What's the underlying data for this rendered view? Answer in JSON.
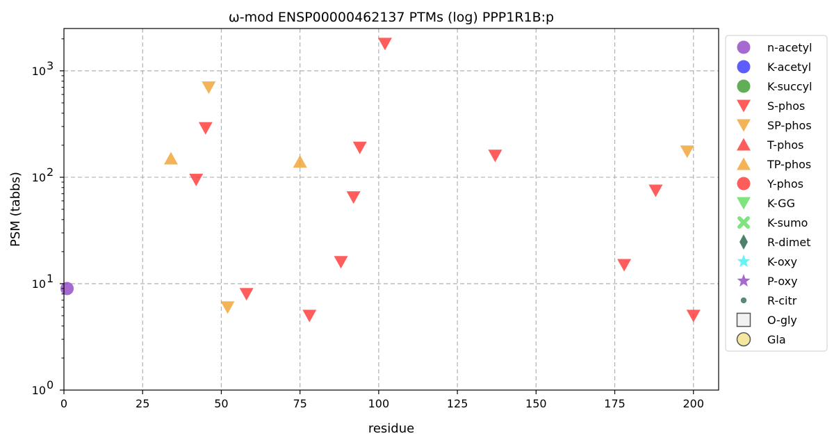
{
  "chart_data": {
    "type": "scatter",
    "title": "ω-mod ENSP00000462137 PTMs (log) PPP1R1B:p",
    "xlabel": "residue",
    "ylabel": "PSM (tabbs)",
    "xlim": [
      0,
      208
    ],
    "ylim": [
      1,
      2500
    ],
    "y_scale": "log",
    "grid": true,
    "legend_position": "right, outside plot",
    "x_ticks": [
      0,
      25,
      50,
      75,
      100,
      125,
      150,
      175,
      200
    ],
    "y_ticks": [
      {
        "value": 1,
        "base": "10",
        "exp": "0"
      },
      {
        "value": 10,
        "base": "10",
        "exp": "1"
      },
      {
        "value": 100,
        "base": "10",
        "exp": "2"
      },
      {
        "value": 1000,
        "base": "10",
        "exp": "3"
      }
    ],
    "series": [
      {
        "name": "n-acetyl",
        "marker": "circle",
        "color": "#8e44c4",
        "points": [
          {
            "x": 1,
            "y": 9
          }
        ]
      },
      {
        "name": "K-acetyl",
        "marker": "circle",
        "color": "#3333ff",
        "points": []
      },
      {
        "name": "K-succyl",
        "marker": "circle",
        "color": "#3a9a2e",
        "points": []
      },
      {
        "name": "S-phos",
        "marker": "triangle-down",
        "color": "#ff3333",
        "points": [
          {
            "x": 42,
            "y": 95
          },
          {
            "x": 45,
            "y": 290
          },
          {
            "x": 58,
            "y": 8
          },
          {
            "x": 78,
            "y": 5
          },
          {
            "x": 88,
            "y": 16
          },
          {
            "x": 92,
            "y": 65
          },
          {
            "x": 94,
            "y": 190
          },
          {
            "x": 102,
            "y": 1800
          },
          {
            "x": 137,
            "y": 160
          },
          {
            "x": 178,
            "y": 15
          },
          {
            "x": 188,
            "y": 75
          },
          {
            "x": 200,
            "y": 5
          }
        ]
      },
      {
        "name": "SP-phos",
        "marker": "triangle-down",
        "color": "#f0a030",
        "points": [
          {
            "x": 46,
            "y": 700
          },
          {
            "x": 52,
            "y": 6
          },
          {
            "x": 198,
            "y": 175
          }
        ]
      },
      {
        "name": "T-phos",
        "marker": "triangle-up",
        "color": "#ff3333",
        "points": []
      },
      {
        "name": "TP-phos",
        "marker": "triangle-up",
        "color": "#f0a030",
        "points": [
          {
            "x": 34,
            "y": 150
          },
          {
            "x": 75,
            "y": 140
          }
        ]
      },
      {
        "name": "Y-phos",
        "marker": "circle",
        "color": "#ff3333",
        "points": []
      },
      {
        "name": "K-GG",
        "marker": "triangle-down",
        "color": "#5fdc5f",
        "points": []
      },
      {
        "name": "K-sumo",
        "marker": "x",
        "color": "#5fdc5f",
        "points": []
      },
      {
        "name": "R-dimet",
        "marker": "diamond",
        "color": "#2f6b4f",
        "points": []
      },
      {
        "name": "K-oxy",
        "marker": "star",
        "color": "#40f0f0",
        "points": []
      },
      {
        "name": "P-oxy",
        "marker": "star",
        "color": "#8e44c4",
        "points": []
      },
      {
        "name": "R-citr",
        "marker": "small-circle",
        "color": "#2f6b4f",
        "points": []
      },
      {
        "name": "O-gly",
        "marker": "square-open",
        "color": "#f2f2f2",
        "points": []
      },
      {
        "name": "Gla",
        "marker": "circle-open",
        "color": "#f5e6a0",
        "points": []
      }
    ]
  }
}
